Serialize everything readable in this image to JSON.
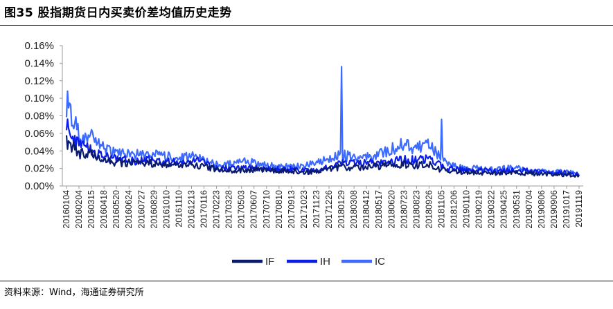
{
  "header": {
    "title": "图35 股指期货日内买卖价差均值历史走势"
  },
  "footer": {
    "source": "资料来源：Wind，海通证券研究所"
  },
  "chart_data": {
    "type": "line",
    "title": "",
    "xlabel": "",
    "ylabel": "",
    "ylim": [
      0,
      0.0016
    ],
    "y_ticks": [
      "0.00%",
      "0.02%",
      "0.04%",
      "0.06%",
      "0.08%",
      "0.10%",
      "0.12%",
      "0.14%",
      "0.16%"
    ],
    "grid": false,
    "legend": "bottom-center",
    "x_ticks": [
      "20160104",
      "20160204",
      "20160315",
      "20160418",
      "20160520",
      "20160624",
      "20160727",
      "20160829",
      "20161010",
      "20161110",
      "20161213",
      "20170116",
      "20170223",
      "20170328",
      "20170503",
      "20170607",
      "20170710",
      "20170810",
      "20170913",
      "20171023",
      "20171123",
      "20171226",
      "20180129",
      "20180308",
      "20180412",
      "20180517",
      "20180620",
      "20180723",
      "20180823",
      "20180926",
      "20181105",
      "20181206",
      "20190110",
      "20190219",
      "20190322",
      "20190425",
      "20190531",
      "20190704",
      "20190806",
      "20190906",
      "20191017",
      "20191119"
    ],
    "series": [
      {
        "name": "IF",
        "color": "#0a1a6e",
        "values": [
          0.00052,
          0.00038,
          0.00035,
          0.00028,
          0.00027,
          0.00026,
          0.00025,
          0.00026,
          0.00024,
          0.00024,
          0.00025,
          0.00022,
          0.00019,
          0.00018,
          0.00018,
          0.00019,
          0.00018,
          0.00017,
          0.00017,
          0.00016,
          0.00016,
          0.00019,
          0.00022,
          0.00021,
          0.00022,
          0.00022,
          0.00024,
          0.00025,
          0.00023,
          0.00025,
          0.00018,
          0.00016,
          0.00015,
          0.00015,
          0.00014,
          0.00015,
          0.00015,
          0.00014,
          0.00014,
          0.00013,
          0.00013,
          0.00012
        ]
      },
      {
        "name": "IH",
        "color": "#0b1ee8",
        "values": [
          0.00072,
          0.00046,
          0.0004,
          0.00033,
          0.0003,
          0.00029,
          0.00028,
          0.0003,
          0.00027,
          0.00028,
          0.0003,
          0.00026,
          0.0002,
          0.0002,
          0.0002,
          0.00021,
          0.0002,
          0.00019,
          0.00019,
          0.00018,
          0.00018,
          0.00021,
          0.00026,
          0.00026,
          0.00026,
          0.00027,
          0.00028,
          0.0003,
          0.00029,
          0.00032,
          0.00022,
          0.00019,
          0.00018,
          0.00018,
          0.00017,
          0.00018,
          0.00018,
          0.00017,
          0.00016,
          0.00015,
          0.00015,
          0.00013
        ]
      },
      {
        "name": "IC",
        "color": "#3d6bff",
        "values": [
          0.00095,
          0.0006,
          0.00055,
          0.00042,
          0.00038,
          0.00036,
          0.00035,
          0.00036,
          0.00033,
          0.00033,
          0.00034,
          0.0003,
          0.00024,
          0.00025,
          0.00027,
          0.00028,
          0.00024,
          0.00022,
          0.00022,
          0.00022,
          0.00028,
          0.0003,
          0.00036,
          0.00032,
          0.00034,
          0.00036,
          0.00042,
          0.00048,
          0.00042,
          0.0005,
          0.0003,
          0.00022,
          0.0002,
          0.0002,
          0.00019,
          0.0002,
          0.0002,
          0.00018,
          0.00017,
          0.00016,
          0.00016,
          0.00014
        ]
      }
    ],
    "annotations": [
      {
        "series": "IC",
        "x": "20180129",
        "y": 0.00136,
        "label": ""
      },
      {
        "series": "IC",
        "x": "20181105",
        "y": 0.00076,
        "label": ""
      }
    ]
  }
}
